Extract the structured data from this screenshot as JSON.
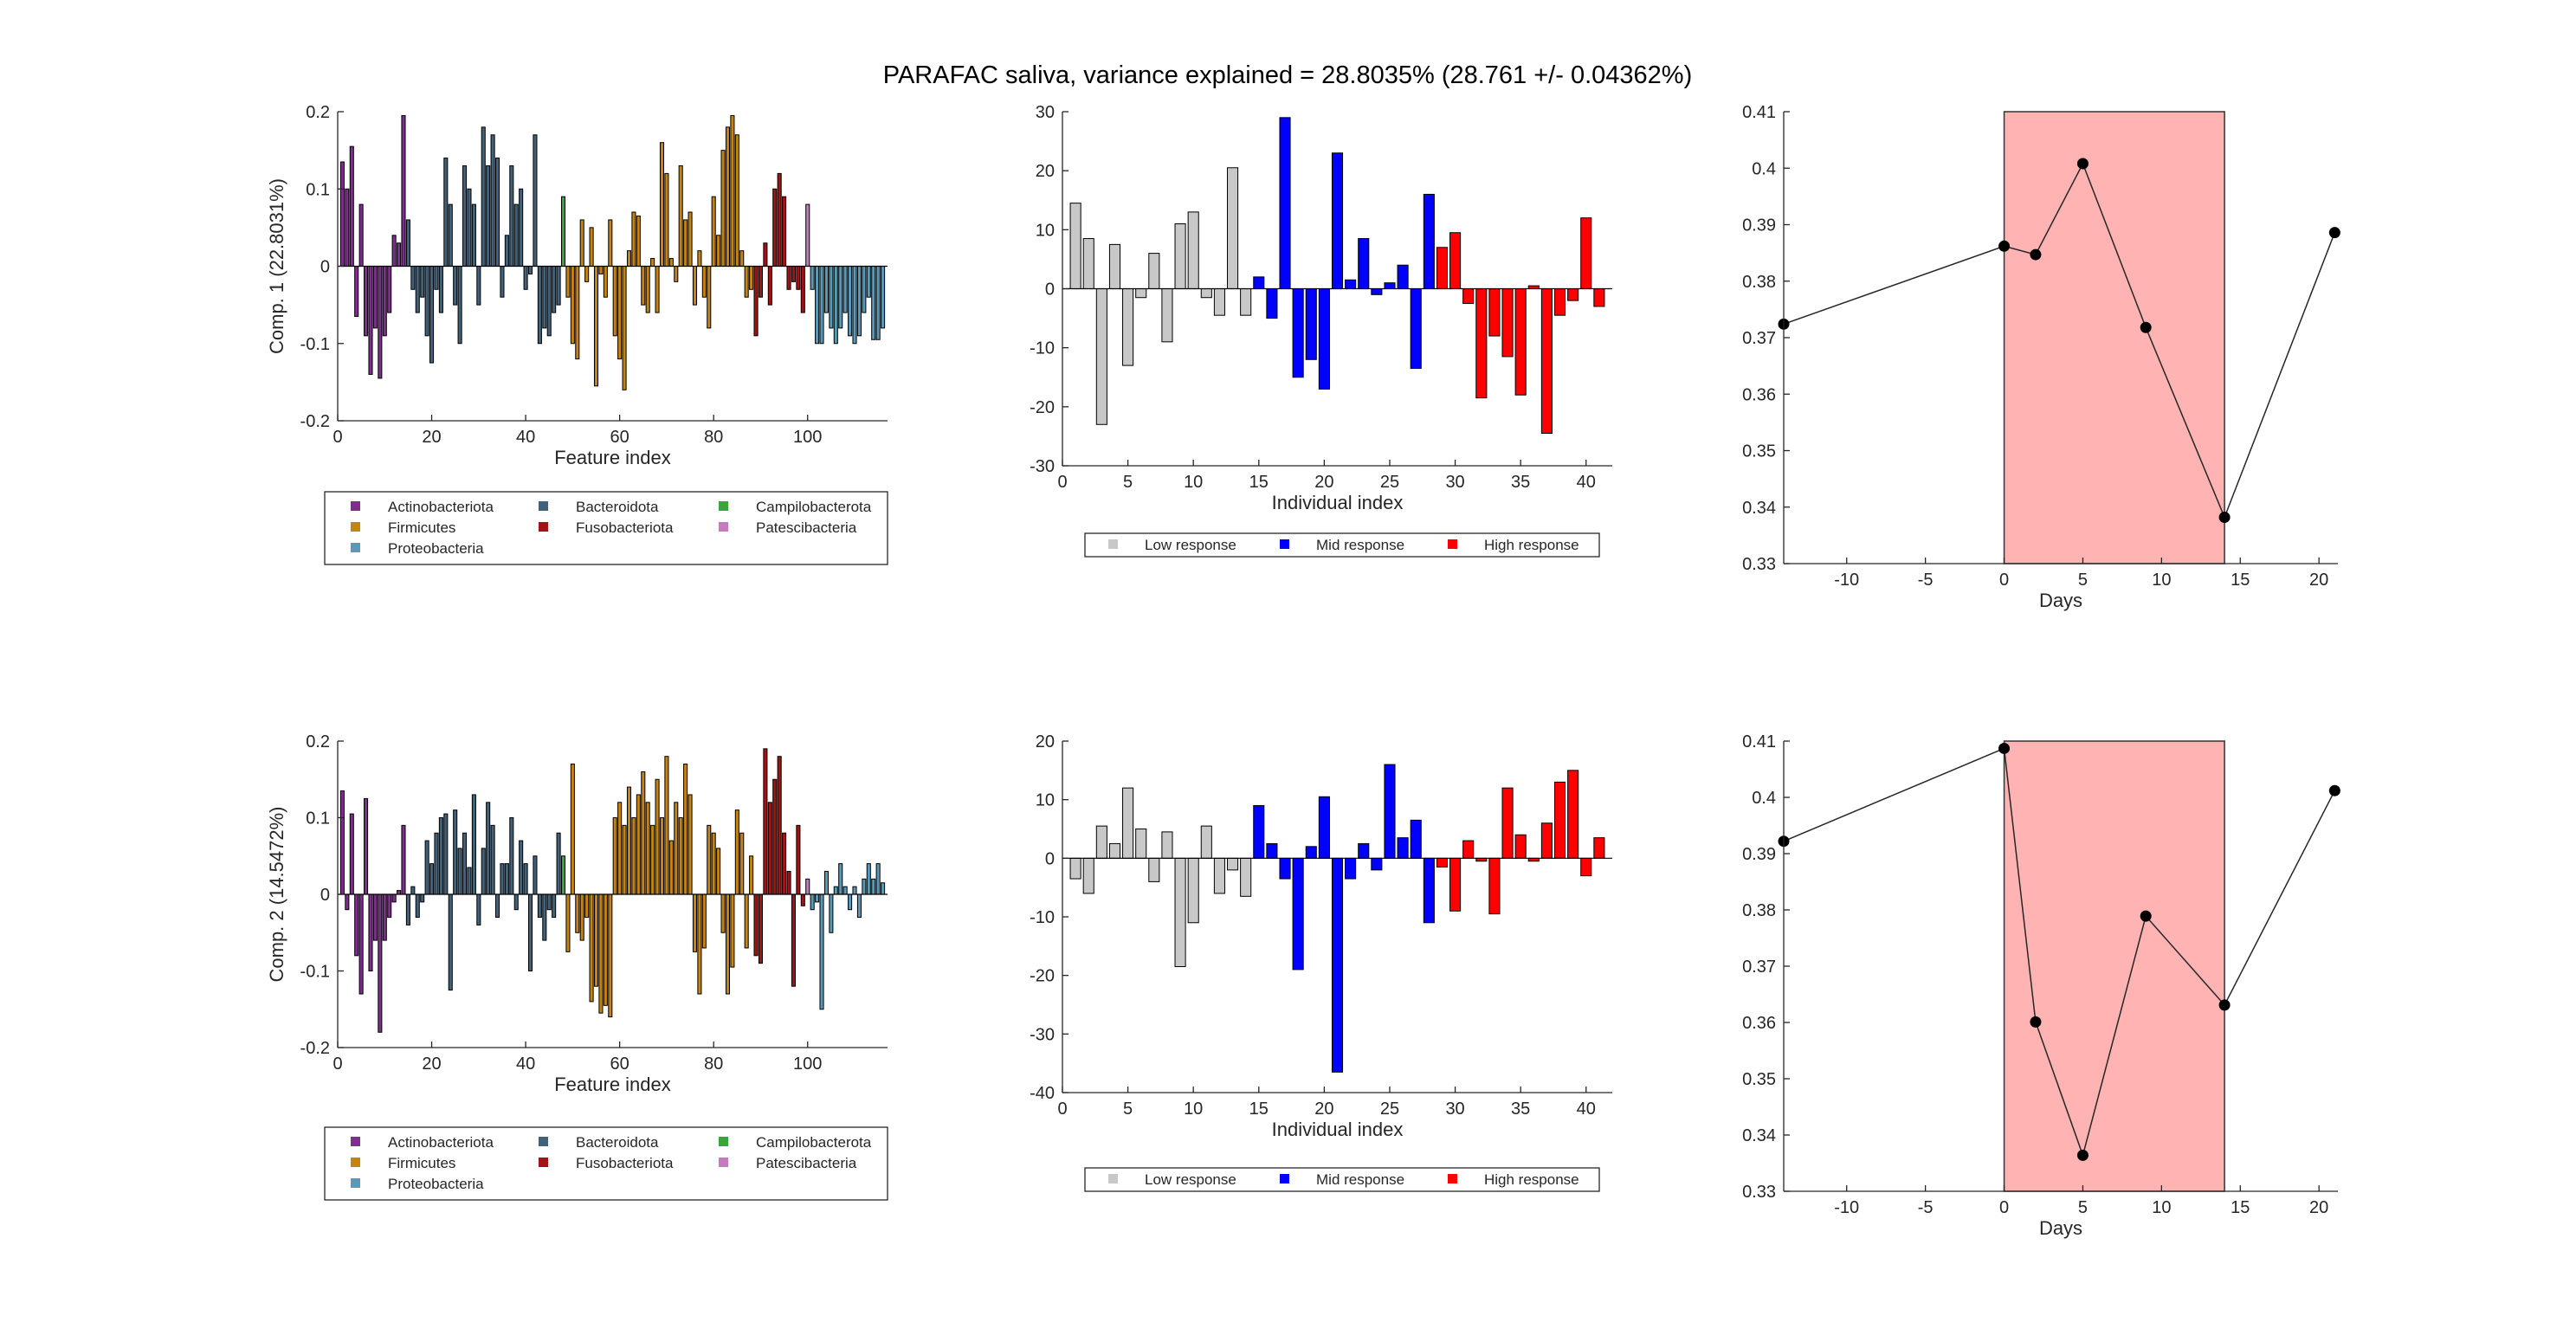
{
  "figure": {
    "title": "PARAFAC saliva, variance explained =  28.8035% (28.761 +/- 0.04362%)"
  },
  "legends": {
    "phyla": [
      {
        "name": "Actinobacteriota",
        "color": "#7e2f8e"
      },
      {
        "name": "Bacteroidota",
        "color": "#41627a"
      },
      {
        "name": "Campilobacterota",
        "color": "#3aa63a"
      },
      {
        "name": "Firmicutes",
        "color": "#c5840f"
      },
      {
        "name": "Fusobacteriota",
        "color": "#a31313"
      },
      {
        "name": "Patescibacteria",
        "color": "#c77bbf"
      },
      {
        "name": "Proteobacteria",
        "color": "#5a9ab8"
      }
    ],
    "response": [
      {
        "name": "Low response",
        "color": "#c8c8c8"
      },
      {
        "name": "Mid response",
        "color": "#0000ff"
      },
      {
        "name": "High response",
        "color": "#ff0000"
      }
    ]
  },
  "chart_data": [
    {
      "type": "bar",
      "id": "comp1-features",
      "ylabel": "Comp. 1 (22.8031%)",
      "xlabel": "Feature index",
      "xlim": [
        0,
        117
      ],
      "ylim": [
        -0.2,
        0.2
      ],
      "xticks": [
        0,
        20,
        40,
        60,
        80,
        100
      ],
      "yticks": [
        -0.2,
        -0.1,
        0,
        0.1,
        0.2
      ],
      "groups": [
        {
          "phylum": "Actinobacteriota",
          "start": 1,
          "values": [
            0.135,
            0.1,
            0.155,
            -0.065,
            0.08,
            -0.09,
            -0.14,
            -0.08,
            -0.145,
            -0.09,
            -0.06,
            0.04,
            0.03,
            0.195
          ]
        },
        {
          "phylum": "Bacteroidota",
          "start": 15,
          "values": [
            0.06,
            -0.03,
            -0.06,
            -0.04,
            -0.09,
            -0.125,
            -0.03,
            -0.06,
            0.14,
            0.08,
            -0.05,
            -0.1,
            0.13,
            0.1,
            0.08,
            -0.05,
            0.18,
            0.13,
            0.17,
            0.14,
            -0.04,
            0.04,
            0.13,
            0.08,
            0.1,
            -0.03,
            -0.01,
            0.17,
            -0.1,
            -0.08,
            -0.09,
            -0.06,
            -0.05
          ]
        },
        {
          "phylum": "Campilobacterota",
          "start": 48,
          "values": [
            0.09
          ]
        },
        {
          "phylum": "Firmicutes",
          "start": 49,
          "values": [
            -0.04,
            -0.1,
            -0.12,
            0.06,
            -0.02,
            0.05,
            -0.155,
            -0.01,
            -0.04,
            0.06,
            -0.09,
            -0.12,
            -0.16,
            0.02,
            0.07,
            0.065,
            -0.05,
            -0.06,
            0.01,
            -0.06,
            0.16,
            0.12,
            0.01,
            -0.02,
            0.13,
            0.06,
            0.07,
            -0.05,
            0.02,
            -0.04,
            -0.08,
            0.09,
            0.04,
            0.15,
            0.18,
            0.195,
            0.17,
            0.02,
            -0.04,
            -0.03
          ]
        },
        {
          "phylum": "Fusobacteriota",
          "start": 89,
          "values": [
            -0.09,
            -0.04,
            0.03,
            -0.05,
            0.1,
            0.12,
            0.09,
            -0.03,
            -0.02,
            -0.03,
            -0.06
          ]
        },
        {
          "phylum": "Patescibacteria",
          "start": 100,
          "values": [
            0.08
          ]
        },
        {
          "phylum": "Proteobacteria",
          "start": 101,
          "values": [
            -0.03,
            -0.1,
            -0.1,
            -0.06,
            -0.08,
            -0.1,
            -0.08,
            -0.06,
            -0.09,
            -0.1,
            -0.09,
            -0.06,
            -0.04,
            -0.095,
            -0.095,
            -0.08
          ]
        }
      ]
    },
    {
      "type": "bar",
      "id": "comp1-individuals",
      "xlabel": "Individual index",
      "xlim": [
        0,
        42
      ],
      "ylim": [
        -30,
        30
      ],
      "xticks": [
        0,
        5,
        10,
        15,
        20,
        25,
        30,
        35,
        40
      ],
      "yticks": [
        -30,
        -20,
        -10,
        0,
        10,
        20,
        30
      ],
      "groups": [
        {
          "response": "Low response",
          "x": [
            1,
            2,
            3,
            4,
            5,
            6,
            7,
            8,
            9,
            10,
            11,
            12,
            13,
            14
          ],
          "values": [
            14.5,
            8.5,
            -23,
            7.5,
            -13,
            -1.5,
            6,
            -9,
            11,
            13,
            -1.5,
            -4.5,
            20.5,
            -4.5
          ]
        },
        {
          "response": "Mid response",
          "x": [
            15,
            16,
            17,
            18,
            19,
            20,
            21,
            22,
            23,
            24,
            25,
            26,
            27,
            28
          ],
          "values": [
            2,
            -5,
            29,
            -15,
            -12,
            -17,
            23,
            1.5,
            8.5,
            -1,
            1,
            4,
            -13.5,
            16
          ]
        },
        {
          "response": "High response",
          "x": [
            29,
            30,
            31,
            32,
            33,
            34,
            35,
            36,
            37,
            38,
            39,
            40,
            41
          ],
          "values": [
            7,
            9.5,
            -2.5,
            -18.5,
            -8,
            -11.5,
            -18,
            0.5,
            -24.5,
            -4.5,
            -2,
            12,
            -3
          ]
        }
      ]
    },
    {
      "type": "line",
      "id": "comp1-days",
      "xlabel": "Days",
      "xlim": [
        -14,
        21.2
      ],
      "ylim": [
        0.33,
        0.41
      ],
      "xticks": [
        -10,
        -5,
        0,
        5,
        10,
        15,
        20
      ],
      "yticks": [
        0.33,
        0.34,
        0.35,
        0.36,
        0.37,
        0.38,
        0.39,
        0.4,
        0.41
      ],
      "shaded_interval": [
        0,
        14
      ],
      "shade_color": "#ffb3b3",
      "x": [
        -14,
        0,
        2,
        5,
        9,
        14,
        21
      ],
      "y": [
        0.3724,
        0.3862,
        0.3847,
        0.4008,
        0.3718,
        0.3382,
        0.3886
      ]
    },
    {
      "type": "bar",
      "id": "comp2-features",
      "ylabel": "Comp. 2 (14.5472%)",
      "xlabel": "Feature index",
      "xlim": [
        0,
        117
      ],
      "ylim": [
        -0.2,
        0.2
      ],
      "xticks": [
        0,
        20,
        40,
        60,
        80,
        100
      ],
      "yticks": [
        -0.2,
        -0.1,
        0,
        0.1,
        0.2
      ],
      "groups": [
        {
          "phylum": "Actinobacteriota",
          "start": 1,
          "values": [
            0.135,
            -0.02,
            0.105,
            -0.08,
            -0.13,
            0.125,
            -0.1,
            -0.06,
            -0.18,
            -0.06,
            -0.03,
            -0.01,
            0.005,
            0.09
          ]
        },
        {
          "phylum": "Bacteroidota",
          "start": 15,
          "values": [
            -0.04,
            0.01,
            -0.03,
            -0.01,
            0.07,
            0.04,
            0.08,
            0.1,
            0.105,
            -0.125,
            0.11,
            0.06,
            0.08,
            0.035,
            0.13,
            -0.04,
            0.06,
            0.12,
            0.09,
            -0.03,
            0.04,
            0.04,
            0.1,
            -0.02,
            0.07,
            0.04,
            -0.1,
            0.05,
            -0.03,
            -0.06,
            -0.02,
            -0.03,
            0.08
          ]
        },
        {
          "phylum": "Campilobacterota",
          "start": 48,
          "values": [
            0.05
          ]
        },
        {
          "phylum": "Firmicutes",
          "start": 49,
          "values": [
            -0.075,
            0.17,
            -0.05,
            -0.06,
            -0.03,
            -0.14,
            -0.12,
            -0.155,
            -0.145,
            -0.16,
            0.1,
            0.12,
            0.09,
            0.14,
            0.1,
            0.13,
            0.16,
            0.12,
            0.09,
            0.15,
            0.1,
            0.18,
            0.07,
            0.12,
            0.1,
            0.17,
            0.13,
            -0.075,
            -0.13,
            -0.07,
            0.09,
            0.08,
            0.06,
            -0.05,
            -0.13,
            -0.095,
            0.11,
            0.08,
            -0.07,
            0.05
          ]
        },
        {
          "phylum": "Fusobacteriota",
          "start": 89,
          "values": [
            -0.08,
            -0.09,
            0.19,
            0.12,
            0.15,
            0.18,
            0.08,
            0.03,
            -0.12,
            0.09,
            -0.015
          ]
        },
        {
          "phylum": "Patescibacteria",
          "start": 100,
          "values": [
            0.02
          ]
        },
        {
          "phylum": "Proteobacteria",
          "start": 101,
          "values": [
            -0.02,
            -0.01,
            -0.15,
            0.03,
            -0.05,
            0.01,
            0.04,
            0.01,
            -0.02,
            0.01,
            -0.03,
            0.02,
            0.04,
            0.02,
            0.04,
            0.015
          ]
        }
      ]
    },
    {
      "type": "bar",
      "id": "comp2-individuals",
      "xlabel": "Individual index",
      "xlim": [
        0,
        42
      ],
      "ylim": [
        -40,
        20
      ],
      "xticks": [
        0,
        5,
        10,
        15,
        20,
        25,
        30,
        35,
        40
      ],
      "yticks": [
        -40,
        -30,
        -20,
        -10,
        0,
        10,
        20
      ],
      "groups": [
        {
          "response": "Low response",
          "x": [
            1,
            2,
            3,
            4,
            5,
            6,
            7,
            8,
            9,
            10,
            11,
            12,
            13,
            14
          ],
          "values": [
            -3.5,
            -6,
            5.5,
            2.5,
            12,
            5,
            -4,
            4.5,
            -18.5,
            -11,
            5.5,
            -6,
            -2,
            -6.5
          ]
        },
        {
          "response": "Mid response",
          "x": [
            15,
            16,
            17,
            18,
            19,
            20,
            21,
            22,
            23,
            24,
            25,
            26,
            27,
            28
          ],
          "values": [
            9,
            2.5,
            -3.5,
            -19,
            2,
            10.5,
            -36.5,
            -3.5,
            2.5,
            -2,
            16,
            3.5,
            6.5,
            -11
          ]
        },
        {
          "response": "High response",
          "x": [
            29,
            30,
            31,
            32,
            33,
            34,
            35,
            36,
            37,
            38,
            39,
            40,
            41
          ],
          "values": [
            -1.5,
            -9,
            3,
            -0.5,
            -9.5,
            12,
            4,
            -0.5,
            6,
            13,
            15,
            -3,
            3.5
          ]
        }
      ]
    },
    {
      "type": "line",
      "id": "comp2-days",
      "xlabel": "Days",
      "xlim": [
        -14,
        21.2
      ],
      "ylim": [
        0.33,
        0.41
      ],
      "xticks": [
        -10,
        -5,
        0,
        5,
        10,
        15,
        20
      ],
      "yticks": [
        0.33,
        0.34,
        0.35,
        0.36,
        0.37,
        0.38,
        0.39,
        0.4,
        0.41
      ],
      "shaded_interval": [
        0,
        14
      ],
      "shade_color": "#ffb3b3",
      "x": [
        -14,
        0,
        2,
        5,
        9,
        14,
        21
      ],
      "y": [
        0.3922,
        0.4087,
        0.3601,
        0.3364,
        0.3789,
        0.3631,
        0.4012
      ]
    }
  ]
}
